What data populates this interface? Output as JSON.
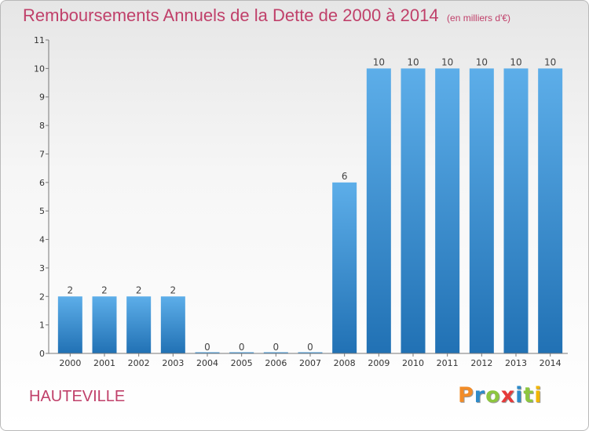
{
  "header": {
    "title": "Remboursements Annuels de la Dette de 2000 à 2014",
    "unit": "(en milliers d'€)"
  },
  "commune": "HAUTEVILLE",
  "logo": {
    "letters": [
      "P",
      "r",
      "o",
      "x",
      "i",
      "t",
      "i"
    ],
    "colors": [
      "#f28c28",
      "#2e8bc9",
      "#8dc63f",
      "#e63a3a",
      "#2e8bc9",
      "#8dc63f",
      "#f2b705"
    ]
  },
  "colors": {
    "bar_light": "#5daee9",
    "bar_dark": "#2171b4",
    "title": "#c0406a",
    "axis": "#555555"
  },
  "chart_data": {
    "type": "bar",
    "title": "Remboursements Annuels de la Dette de 2000 à 2014",
    "subtitle": "(en milliers d'€)",
    "xlabel": "",
    "ylabel": "",
    "categories": [
      "2000",
      "2001",
      "2002",
      "2003",
      "2004",
      "2005",
      "2006",
      "2007",
      "2008",
      "2009",
      "2010",
      "2011",
      "2012",
      "2013",
      "2014"
    ],
    "values": [
      2,
      2,
      2,
      2,
      0,
      0,
      0,
      0,
      6,
      10,
      10,
      10,
      10,
      10,
      10
    ],
    "data_labels": [
      "2",
      "2",
      "2",
      "2",
      "0",
      "0",
      "0",
      "0",
      "6",
      "10",
      "10",
      "10",
      "10",
      "10",
      "10"
    ],
    "y_ticks": [
      "0",
      "1",
      "2",
      "3",
      "4",
      "5",
      "6",
      "7",
      "8",
      "9",
      "10",
      "11"
    ],
    "ylim": [
      0,
      11
    ],
    "grid": false,
    "legend": "none"
  }
}
